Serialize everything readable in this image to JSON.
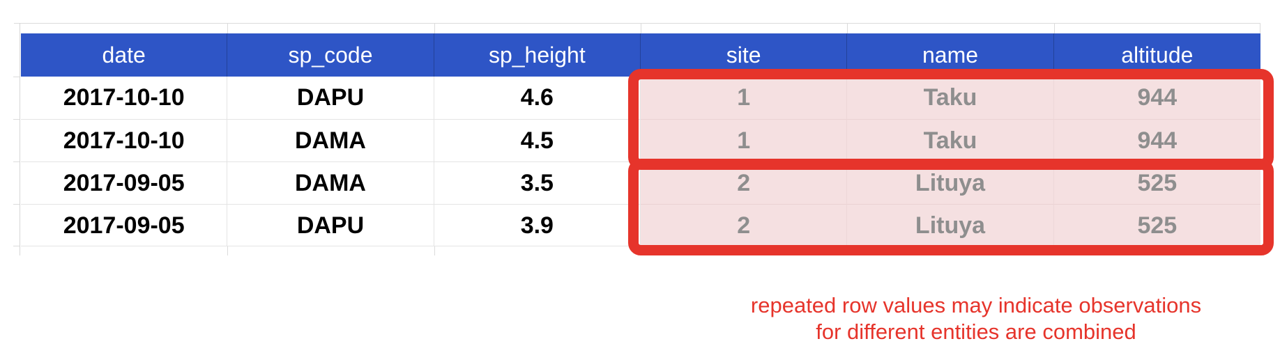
{
  "table": {
    "columns": [
      "date",
      "sp_code",
      "sp_height",
      "site",
      "name",
      "altitude"
    ],
    "rows": [
      [
        "2017-10-10",
        "DAPU",
        "4.6",
        "1",
        "Taku",
        "944"
      ],
      [
        "2017-10-10",
        "DAMA",
        "4.5",
        "1",
        "Taku",
        "944"
      ],
      [
        "2017-09-05",
        "DAMA",
        "3.5",
        "2",
        "Lituya",
        "525"
      ],
      [
        "2017-09-05",
        "DAPU",
        "3.9",
        "2",
        "Lituya",
        "525"
      ]
    ]
  },
  "highlight": {
    "columns": [
      "site",
      "name",
      "altitude"
    ],
    "red_boxes": [
      {
        "covers_rows": [
          1,
          2
        ],
        "repeated_values": [
          "1",
          "Taku",
          "944"
        ]
      },
      {
        "covers_rows": [
          3,
          4
        ],
        "repeated_values": [
          "2",
          "Lituya",
          "525"
        ]
      }
    ]
  },
  "annotation": {
    "line1": "repeated row values may indicate observations",
    "line2": "for different entities are combined"
  },
  "colors": {
    "header_bg": "#2E55C6",
    "header_text": "#FFFFFF",
    "cell_text": "#000000",
    "highlight_bg": "#F5E0E1",
    "highlight_text": "#8E8E8E",
    "annotation_red": "#E6342B",
    "gridline": "#E4E4E4"
  }
}
